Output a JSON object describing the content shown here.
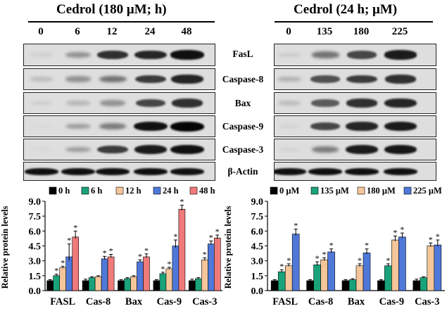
{
  "left_panel": {
    "title": "Cedrol (180 μM; h)",
    "lanes": [
      "0",
      "6",
      "12",
      "24",
      "48"
    ],
    "intensity": {
      "fasl": [
        0.06,
        0.35,
        0.8,
        0.85,
        0.95
      ],
      "caspase8": [
        0.15,
        0.35,
        0.5,
        0.75,
        0.85
      ],
      "bax": [
        0.08,
        0.18,
        0.35,
        0.7,
        0.8
      ],
      "caspase9": [
        0.02,
        0.3,
        0.45,
        0.95,
        1.0
      ],
      "caspase3": [
        0.02,
        0.3,
        0.75,
        0.9,
        0.95
      ],
      "actin": [
        0.95,
        0.95,
        0.95,
        0.95,
        0.95
      ]
    }
  },
  "right_panel": {
    "title": "Cedrol (24 h; μM)",
    "lanes": [
      "0",
      "135",
      "180",
      "225"
    ],
    "intensity": {
      "fasl": [
        0.08,
        0.5,
        0.7,
        0.9
      ],
      "caspase8": [
        0.2,
        0.65,
        0.75,
        0.8
      ],
      "bax": [
        0.15,
        0.6,
        0.8,
        0.85
      ],
      "caspase9": [
        0.05,
        0.7,
        0.85,
        0.9
      ],
      "caspase3": [
        0.05,
        0.45,
        0.9,
        0.92
      ],
      "actin": [
        0.95,
        0.95,
        0.95,
        0.95
      ]
    }
  },
  "protein_labels": [
    "FasL",
    "Caspase-8",
    "Bax",
    "Caspase-9",
    "Caspase-3",
    "β-Actin"
  ],
  "chart_data": [
    {
      "type": "bar",
      "title": "",
      "xlabel": "",
      "ylabel": "Relative protein levels",
      "ylim": [
        0,
        9
      ],
      "yticks": [
        "0.0",
        "1.5",
        "3.0",
        "4.5",
        "6.0",
        "7.5",
        "9.0"
      ],
      "categories": [
        "FASL",
        "Cas-8",
        "Bax",
        "Cas-9",
        "Cas-3"
      ],
      "series": [
        {
          "name": "0 h",
          "color": "#000000",
          "values": [
            1.0,
            1.0,
            1.0,
            1.0,
            1.0
          ],
          "errors": [
            0.1,
            0.15,
            0.1,
            0.1,
            0.15
          ],
          "sig": [
            false,
            false,
            false,
            false,
            false
          ]
        },
        {
          "name": "6 h",
          "color": "#1aa37a",
          "values": [
            1.5,
            1.3,
            1.2,
            1.7,
            1.2
          ],
          "errors": [
            0.15,
            0.1,
            0.1,
            0.15,
            0.1
          ],
          "sig": [
            true,
            false,
            false,
            true,
            false
          ]
        },
        {
          "name": "12 h",
          "color": "#f5c69a",
          "values": [
            2.3,
            1.4,
            1.4,
            2.2,
            3.1
          ],
          "errors": [
            0.15,
            0.1,
            0.1,
            0.15,
            0.2
          ],
          "sig": [
            true,
            false,
            false,
            true,
            true
          ]
        },
        {
          "name": "24 h",
          "color": "#4f78d9",
          "values": [
            3.4,
            3.2,
            2.9,
            4.5,
            4.7
          ],
          "errors": [
            1.3,
            0.25,
            0.2,
            0.6,
            0.3
          ],
          "sig": [
            true,
            true,
            true,
            true,
            true
          ]
        },
        {
          "name": "48 h",
          "color": "#f07a7a",
          "values": [
            5.4,
            3.4,
            3.4,
            8.2,
            5.3
          ],
          "errors": [
            0.6,
            0.25,
            0.3,
            0.4,
            0.3
          ],
          "sig": [
            true,
            true,
            true,
            true,
            true
          ]
        }
      ]
    },
    {
      "type": "bar",
      "title": "",
      "xlabel": "",
      "ylabel": "Relative protein levels",
      "ylim": [
        0,
        9
      ],
      "yticks": [
        "0.0",
        "1.5",
        "3.0",
        "4.5",
        "6.0",
        "7.5",
        "9.0"
      ],
      "categories": [
        "FASL",
        "Cas-8",
        "Bax",
        "Cas-9",
        "Cas-3"
      ],
      "series": [
        {
          "name": "0 μM",
          "color": "#000000",
          "values": [
            1.0,
            1.0,
            1.0,
            1.0,
            1.0
          ],
          "errors": [
            0.1,
            0.1,
            0.1,
            0.1,
            0.15
          ],
          "sig": [
            false,
            false,
            false,
            false,
            false
          ]
        },
        {
          "name": "135 μM",
          "color": "#1aa37a",
          "values": [
            1.9,
            2.6,
            1.1,
            2.5,
            1.3
          ],
          "errors": [
            0.2,
            0.3,
            0.1,
            0.2,
            0.1
          ],
          "sig": [
            true,
            true,
            false,
            true,
            false
          ]
        },
        {
          "name": "180 μM",
          "color": "#f5c69a",
          "values": [
            2.5,
            3.1,
            2.5,
            5.1,
            4.5
          ],
          "errors": [
            0.2,
            0.2,
            0.2,
            0.4,
            0.3
          ],
          "sig": [
            true,
            true,
            true,
            true,
            true
          ]
        },
        {
          "name": "225 μM",
          "color": "#4f78d9",
          "values": [
            5.7,
            3.9,
            3.8,
            5.4,
            4.6
          ],
          "errors": [
            0.5,
            0.3,
            0.4,
            0.4,
            0.5
          ],
          "sig": [
            true,
            true,
            true,
            true,
            true
          ]
        }
      ]
    }
  ]
}
